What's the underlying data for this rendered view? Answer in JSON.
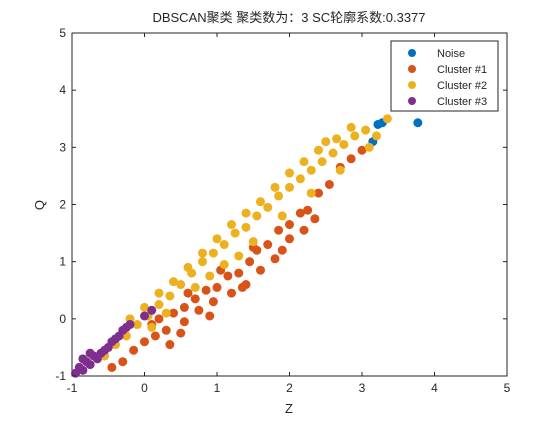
{
  "chart_data": {
    "type": "scatter",
    "title": "DBSCAN聚类  聚类数为：3  SC轮廓系数:0.3377",
    "xlabel": "Z",
    "ylabel": "Q",
    "xlim": [
      -1,
      5
    ],
    "ylim": [
      -1,
      5
    ],
    "xticks": [
      "-1",
      "0",
      "1",
      "2",
      "3",
      "4",
      "5"
    ],
    "yticks": [
      "-1",
      "0",
      "1",
      "2",
      "3",
      "4",
      "5"
    ],
    "grid": false,
    "legend_position": "top-right",
    "colors": {
      "Noise": "#0072bd",
      "Cluster #1": "#d95319",
      "Cluster #2": "#edb120",
      "Cluster #3": "#7e2f8e"
    },
    "series": [
      {
        "name": "Noise",
        "points": [
          [
            3.22,
            3.4
          ],
          [
            3.28,
            3.43
          ],
          [
            3.15,
            3.1
          ],
          [
            3.77,
            3.43
          ]
        ]
      },
      {
        "name": "Cluster #1",
        "points": [
          [
            -0.45,
            -0.85
          ],
          [
            -0.3,
            -0.75
          ],
          [
            -0.15,
            -0.55
          ],
          [
            0.0,
            -0.4
          ],
          [
            0.15,
            -0.3
          ],
          [
            0.3,
            -0.2
          ],
          [
            0.4,
            0.1
          ],
          [
            0.55,
            0.2
          ],
          [
            0.7,
            0.35
          ],
          [
            0.85,
            0.5
          ],
          [
            1.0,
            0.55
          ],
          [
            1.15,
            0.75
          ],
          [
            1.3,
            0.8
          ],
          [
            1.45,
            1.0
          ],
          [
            1.55,
            1.2
          ],
          [
            1.7,
            1.3
          ],
          [
            1.85,
            1.55
          ],
          [
            2.0,
            1.65
          ],
          [
            2.15,
            1.85
          ],
          [
            2.25,
            1.9
          ],
          [
            2.4,
            2.2
          ],
          [
            2.55,
            2.35
          ],
          [
            2.7,
            2.65
          ],
          [
            2.85,
            2.8
          ],
          [
            3.0,
            2.95
          ],
          [
            0.35,
            -0.45
          ],
          [
            0.55,
            -0.05
          ],
          [
            0.75,
            0.15
          ],
          [
            0.95,
            0.3
          ],
          [
            1.2,
            0.45
          ],
          [
            1.4,
            0.6
          ],
          [
            1.6,
            0.85
          ],
          [
            1.8,
            1.05
          ],
          [
            2.0,
            1.4
          ],
          [
            2.2,
            1.55
          ],
          [
            0.2,
            0.0
          ],
          [
            0.6,
            0.45
          ],
          [
            1.05,
            0.85
          ],
          [
            1.5,
            1.25
          ],
          [
            2.35,
            1.75
          ],
          [
            0.1,
            -0.1
          ],
          [
            0.5,
            -0.25
          ],
          [
            0.9,
            0.05
          ],
          [
            1.35,
            0.55
          ],
          [
            1.9,
            1.2
          ]
        ]
      },
      {
        "name": "Cluster #2",
        "points": [
          [
            -0.55,
            -0.65
          ],
          [
            -0.4,
            -0.45
          ],
          [
            -0.25,
            -0.3
          ],
          [
            -0.1,
            -0.1
          ],
          [
            0.05,
            0.05
          ],
          [
            0.2,
            0.25
          ],
          [
            0.35,
            0.4
          ],
          [
            0.5,
            0.6
          ],
          [
            0.65,
            0.8
          ],
          [
            0.8,
            1.0
          ],
          [
            0.95,
            1.15
          ],
          [
            1.1,
            1.3
          ],
          [
            1.25,
            1.5
          ],
          [
            1.4,
            1.6
          ],
          [
            1.55,
            1.8
          ],
          [
            1.7,
            1.95
          ],
          [
            1.85,
            2.15
          ],
          [
            2.0,
            2.3
          ],
          [
            2.15,
            2.45
          ],
          [
            2.3,
            2.6
          ],
          [
            2.45,
            2.75
          ],
          [
            2.6,
            2.9
          ],
          [
            2.75,
            3.05
          ],
          [
            2.9,
            3.2
          ],
          [
            3.05,
            3.3
          ],
          [
            -0.2,
            0.0
          ],
          [
            0.0,
            0.2
          ],
          [
            0.2,
            0.45
          ],
          [
            0.4,
            0.65
          ],
          [
            0.6,
            0.9
          ],
          [
            0.8,
            1.15
          ],
          [
            1.0,
            1.4
          ],
          [
            1.2,
            1.65
          ],
          [
            1.4,
            1.85
          ],
          [
            1.6,
            2.05
          ],
          [
            1.8,
            2.3
          ],
          [
            2.0,
            2.55
          ],
          [
            2.2,
            2.75
          ],
          [
            2.4,
            2.95
          ],
          [
            2.65,
            3.15
          ],
          [
            0.3,
            0.1
          ],
          [
            0.7,
            0.55
          ],
          [
            1.1,
            0.95
          ],
          [
            1.5,
            1.35
          ],
          [
            1.9,
            1.8
          ],
          [
            2.3,
            2.2
          ],
          [
            2.7,
            2.6
          ],
          [
            3.1,
            3.0
          ],
          [
            0.9,
            0.75
          ],
          [
            1.3,
            1.1
          ],
          [
            3.35,
            3.5
          ],
          [
            2.5,
            3.1
          ],
          [
            2.85,
            3.35
          ],
          [
            3.2,
            3.2
          ],
          [
            0.1,
            -0.15
          ]
        ]
      },
      {
        "name": "Cluster #3",
        "points": [
          [
            -0.95,
            -0.95
          ],
          [
            -0.9,
            -0.85
          ],
          [
            -0.85,
            -0.9
          ],
          [
            -0.8,
            -0.75
          ],
          [
            -0.75,
            -0.8
          ],
          [
            -0.7,
            -0.65
          ],
          [
            -0.65,
            -0.7
          ],
          [
            -0.6,
            -0.6
          ],
          [
            -0.55,
            -0.55
          ],
          [
            -0.5,
            -0.5
          ],
          [
            -0.45,
            -0.4
          ],
          [
            -0.4,
            -0.35
          ],
          [
            -0.35,
            -0.3
          ],
          [
            -0.3,
            -0.2
          ],
          [
            -0.25,
            -0.15
          ],
          [
            -0.2,
            -0.1
          ],
          [
            0.0,
            0.05
          ],
          [
            0.1,
            0.15
          ],
          [
            -0.85,
            -0.7
          ],
          [
            -0.75,
            -0.6
          ]
        ]
      }
    ]
  }
}
